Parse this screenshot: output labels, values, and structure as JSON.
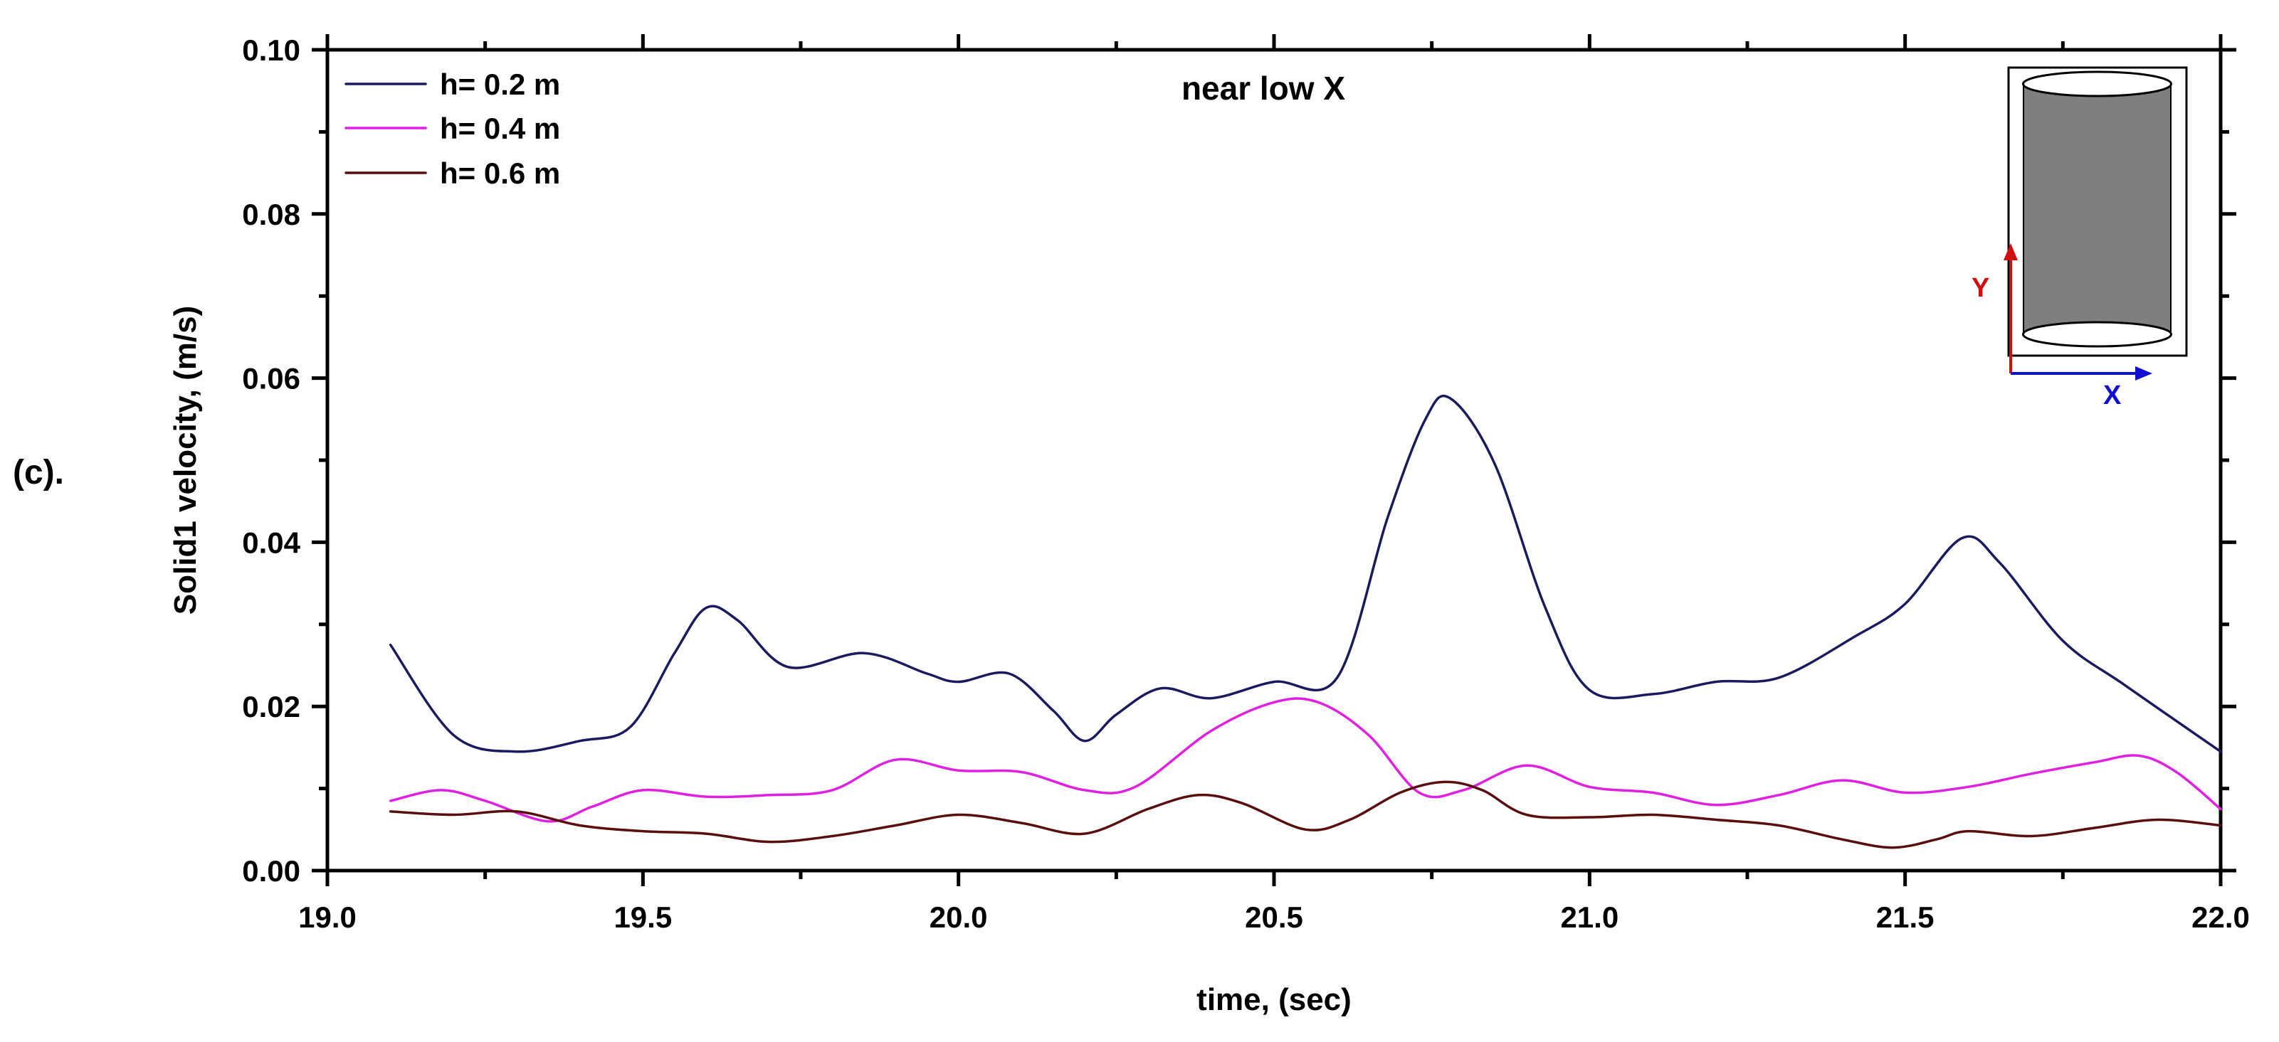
{
  "panel_label": "(c).",
  "chart_data": {
    "type": "line",
    "title": "near low X",
    "xlabel": "time, (sec)",
    "ylabel": "Solid1 velocity, (m/s)",
    "xlim": [
      19.0,
      22.0
    ],
    "ylim": [
      0.0,
      0.1
    ],
    "x_ticks": [
      19.0,
      19.5,
      20.0,
      20.5,
      21.0,
      21.5,
      22.0
    ],
    "x_tick_labels": [
      "19.0",
      "19.5",
      "20.0",
      "20.5",
      "21.0",
      "21.5",
      "22.0"
    ],
    "y_ticks": [
      0.0,
      0.02,
      0.04,
      0.06,
      0.08,
      0.1
    ],
    "y_tick_labels": [
      "0.00",
      "0.02",
      "0.04",
      "0.06",
      "0.08",
      "0.10"
    ],
    "legend_position": "top-left",
    "series": [
      {
        "name": "h= 0.2 m",
        "color": "#1a1a5e",
        "x": [
          19.1,
          19.2,
          19.3,
          19.4,
          19.48,
          19.55,
          19.6,
          19.65,
          19.73,
          19.85,
          19.95,
          20.0,
          20.08,
          20.15,
          20.2,
          20.25,
          20.32,
          20.4,
          20.5,
          20.6,
          20.68,
          20.74,
          20.78,
          20.85,
          20.93,
          21.0,
          21.1,
          21.2,
          21.3,
          21.42,
          21.5,
          21.59,
          21.65,
          21.75,
          21.85,
          22.0
        ],
        "y": [
          0.0275,
          0.0165,
          0.0145,
          0.0158,
          0.0175,
          0.0265,
          0.032,
          0.0305,
          0.0248,
          0.0265,
          0.024,
          0.023,
          0.024,
          0.0195,
          0.0158,
          0.019,
          0.0222,
          0.021,
          0.023,
          0.0235,
          0.043,
          0.055,
          0.0575,
          0.0495,
          0.032,
          0.022,
          0.0215,
          0.023,
          0.0235,
          0.0285,
          0.0325,
          0.0405,
          0.0375,
          0.028,
          0.0225,
          0.0145
        ]
      },
      {
        "name": "h= 0.4 m",
        "color": "#e020e0",
        "x": [
          19.1,
          19.18,
          19.25,
          19.35,
          19.42,
          19.5,
          19.6,
          19.7,
          19.8,
          19.9,
          20.0,
          20.1,
          20.2,
          20.28,
          20.4,
          20.5,
          20.57,
          20.65,
          20.73,
          20.8,
          20.9,
          21.0,
          21.1,
          21.2,
          21.3,
          21.4,
          21.5,
          21.6,
          21.7,
          21.8,
          21.87,
          21.93,
          22.0
        ],
        "y": [
          0.0085,
          0.0098,
          0.0085,
          0.006,
          0.0078,
          0.0098,
          0.009,
          0.0092,
          0.0098,
          0.0135,
          0.0122,
          0.012,
          0.0098,
          0.0102,
          0.017,
          0.0205,
          0.0205,
          0.0165,
          0.0095,
          0.0098,
          0.0128,
          0.0102,
          0.0095,
          0.008,
          0.0092,
          0.011,
          0.0095,
          0.0102,
          0.0118,
          0.0132,
          0.014,
          0.012,
          0.0075
        ]
      },
      {
        "name": "h= 0.6 m",
        "color": "#5a0f0f",
        "x": [
          19.1,
          19.2,
          19.3,
          19.4,
          19.5,
          19.6,
          19.7,
          19.8,
          19.9,
          20.0,
          20.1,
          20.2,
          20.3,
          20.38,
          20.45,
          20.55,
          20.62,
          20.7,
          20.77,
          20.83,
          20.9,
          21.0,
          21.1,
          21.2,
          21.3,
          21.4,
          21.48,
          21.55,
          21.6,
          21.7,
          21.8,
          21.9,
          22.0
        ],
        "y": [
          0.0072,
          0.0068,
          0.0072,
          0.0055,
          0.0048,
          0.0045,
          0.0035,
          0.0042,
          0.0055,
          0.0068,
          0.0058,
          0.0045,
          0.0075,
          0.0092,
          0.0082,
          0.005,
          0.0062,
          0.0095,
          0.0108,
          0.0098,
          0.0068,
          0.0065,
          0.0068,
          0.0062,
          0.0055,
          0.0038,
          0.0028,
          0.0038,
          0.0048,
          0.0042,
          0.0052,
          0.0062,
          0.0055
        ]
      }
    ]
  },
  "inset": {
    "y_axis_label": "Y",
    "x_axis_label": "X",
    "y_axis_color": "#d01010",
    "x_axis_color": "#1010d0",
    "cylinder_color": "#7f7f7f"
  }
}
